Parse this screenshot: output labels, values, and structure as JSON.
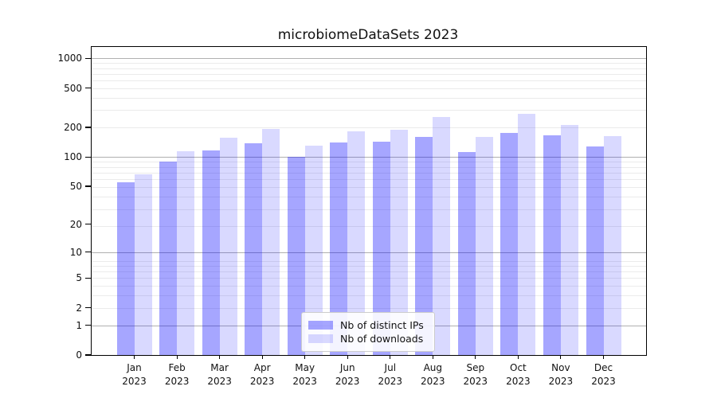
{
  "title": "microbiomeDataSets 2023",
  "legend": {
    "items": [
      {
        "label": "Nb of distinct IPs",
        "color": "#0000ff",
        "alpha": 0.35
      },
      {
        "label": "Nb of downloads",
        "color": "#0000ff",
        "alpha": 0.15
      }
    ],
    "position": "lower center"
  },
  "chart_data": {
    "type": "bar",
    "title": "microbiomeDataSets 2023",
    "categories": [
      "Jan 2023",
      "Feb 2023",
      "Mar 2023",
      "Apr 2023",
      "May 2023",
      "Jun 2023",
      "Jul 2023",
      "Aug 2023",
      "Sep 2023",
      "Oct 2023",
      "Nov 2023",
      "Dec 2023"
    ],
    "series": [
      {
        "name": "Nb of distinct IPs",
        "color": "#0000ff",
        "alpha": 0.35,
        "values": [
          55,
          90,
          117,
          137,
          101,
          140,
          142,
          160,
          112,
          177,
          166,
          129
        ]
      },
      {
        "name": "Nb of downloads",
        "color": "#0000ff",
        "alpha": 0.15,
        "values": [
          66,
          114,
          156,
          193,
          130,
          184,
          188,
          257,
          161,
          276,
          210,
          163
        ]
      }
    ],
    "xlabel": "",
    "ylabel": "",
    "yscale": "log1p",
    "yticks": [
      0,
      1,
      2,
      5,
      10,
      20,
      50,
      100,
      200,
      500,
      1000
    ],
    "major_grid_values": [
      1,
      10,
      100,
      1000
    ],
    "ylim": [
      0,
      1307
    ],
    "grid": true,
    "legend_position": "lower center"
  }
}
